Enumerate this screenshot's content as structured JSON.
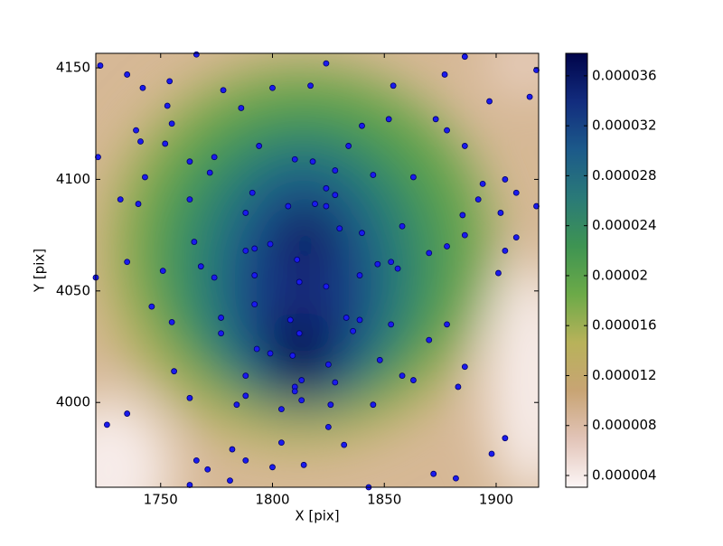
{
  "chart_data": {
    "type": "scatter",
    "x_label": "X [pix]",
    "y_label": "Y [pix]",
    "xlim": [
      1721,
      1919
    ],
    "ylim": [
      3962,
      4156.5
    ],
    "xticks": [
      1750,
      1800,
      1850,
      1900
    ],
    "yticks": [
      4000,
      4050,
      4100,
      4150
    ],
    "point_color": "#1a1aee",
    "point_edge": "#00006a",
    "colorbar": {
      "lim": [
        3.06e-06,
        3.78e-05
      ],
      "ticks": [
        4e-06,
        8e-06,
        1.2e-05,
        1.6e-05,
        2e-05,
        2.4e-05,
        2.8e-05,
        3.2e-05,
        3.6e-05
      ],
      "colormap": [
        "#fcf6f6",
        "#e2c4b8",
        "#c8a474",
        "#b8b25a",
        "#6caa48",
        "#3e9452",
        "#2a7a78",
        "#1c5a8a",
        "#122c7e",
        "#00044a"
      ]
    },
    "x": [
      1723,
      1735,
      1742,
      1754,
      1766,
      1778,
      1800,
      1817,
      1824,
      1854,
      1877,
      1886,
      1918,
      1915,
      1897,
      1786,
      1753,
      1755,
      1739,
      1741,
      1752,
      1852,
      1840,
      1873,
      1878,
      1886,
      1794,
      1834,
      1722,
      1763,
      1774,
      1772,
      1810,
      1818,
      1828,
      1845,
      1863,
      1743,
      1732,
      1740,
      1763,
      1791,
      1788,
      1824,
      1828,
      1807,
      1819,
      1824,
      1894,
      1904,
      1909,
      1892,
      1902,
      1885,
      1918,
      1858,
      1830,
      1840,
      1886,
      1909,
      1765,
      1799,
      1792,
      1788,
      1878,
      1870,
      1904,
      1735,
      1768,
      1811,
      1847,
      1853,
      1856,
      1901,
      1751,
      1721,
      1774,
      1792,
      1839,
      1812,
      1824,
      1746,
      1792,
      1833,
      1839,
      1777,
      1808,
      1755,
      1853,
      1878,
      1777,
      1812,
      1836,
      1870,
      1793,
      1799,
      1809,
      1825,
      1848,
      1886,
      1756,
      1788,
      1858,
      1863,
      1828,
      1813,
      1883,
      1810,
      1810,
      1763,
      1788,
      1813,
      1784,
      1826,
      1845,
      1804,
      1735,
      1726,
      1825,
      1832,
      1904,
      1804,
      1782,
      1898,
      1766,
      1788,
      1814,
      1771,
      1800,
      1872,
      1882,
      1781,
      1763,
      1843
    ],
    "y": [
      4151,
      4147,
      4141,
      4144,
      4156,
      4140,
      4141,
      4142,
      4152,
      4142,
      4147,
      4155,
      4149,
      4137,
      4135,
      4132,
      4133,
      4125,
      4122,
      4117,
      4116,
      4127,
      4124,
      4127,
      4122,
      4115,
      4115,
      4115,
      4110,
      4108,
      4110,
      4103,
      4109,
      4108,
      4104,
      4102,
      4101,
      4101,
      4091,
      4089,
      4091,
      4094,
      4085,
      4096,
      4093,
      4088,
      4089,
      4088,
      4098,
      4100,
      4094,
      4091,
      4085,
      4084,
      4088,
      4079,
      4078,
      4076,
      4075,
      4074,
      4072,
      4071,
      4069,
      4068,
      4070,
      4067,
      4068,
      4063,
      4061,
      4064,
      4062,
      4063,
      4060,
      4058,
      4059,
      4056,
      4056,
      4057,
      4057,
      4054,
      4052,
      4043,
      4044,
      4038,
      4037,
      4038,
      4037,
      4036,
      4035,
      4035,
      4031,
      4031,
      4032,
      4028,
      4024,
      4022,
      4021,
      4017,
      4019,
      4016,
      4014,
      4012,
      4012,
      4010,
      4009,
      4010,
      4007,
      4007,
      4005,
      4002,
      4003,
      4001,
      3999,
      3999,
      3999,
      3997,
      3995,
      3990,
      3989,
      3981,
      3984,
      3982,
      3979,
      3977,
      3974,
      3974,
      3972,
      3970,
      3971,
      3968,
      3966,
      3965,
      3963,
      3962
    ]
  }
}
